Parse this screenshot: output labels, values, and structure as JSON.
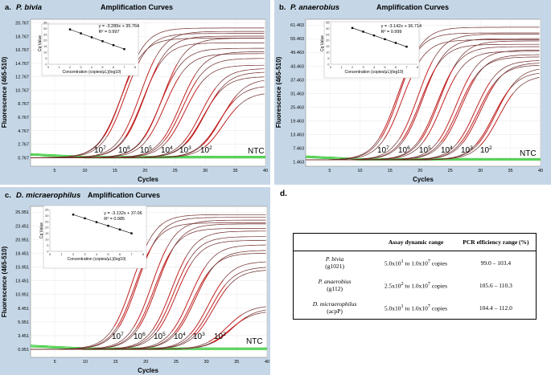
{
  "chart_data": [
    {
      "type": "line",
      "panel": "a.",
      "organism": "P. bivia",
      "title": "Amplification Curves",
      "xlabel": "Cycles",
      "ylabel": "Fluorescence (465-510)",
      "xticks": [
        5,
        10,
        15,
        20,
        25,
        30,
        35,
        40
      ],
      "yticks": [
        "0.767",
        "2.767",
        "4.767",
        "6.767",
        "8.767",
        "10.767",
        "12.767",
        "14.767",
        "16.767",
        "18.767",
        "20.767"
      ],
      "xlim": [
        1,
        40
      ],
      "ylim": [
        -0.5,
        21.3
      ],
      "curve_labels": [
        "7",
        "6",
        "5",
        "4",
        "3",
        "2"
      ],
      "ntc_label": "NTC",
      "curves": [
        {
          "label": "10^7",
          "ct": 16.0,
          "plateau": 18.5
        },
        {
          "label": "10^7",
          "ct": 16.3,
          "plateau": 20.0
        },
        {
          "label": "10^7",
          "ct": 16.7,
          "plateau": 19.2
        },
        {
          "label": "10^6",
          "ct": 19.2,
          "plateau": 19.5
        },
        {
          "label": "10^6",
          "ct": 19.6,
          "plateau": 17.8
        },
        {
          "label": "10^6",
          "ct": 19.9,
          "plateau": 18.8
        },
        {
          "label": "10^5",
          "ct": 22.6,
          "plateau": 17.0
        },
        {
          "label": "10^5",
          "ct": 22.9,
          "plateau": 18.5
        },
        {
          "label": "10^5",
          "ct": 23.3,
          "plateau": 16.2
        },
        {
          "label": "10^4",
          "ct": 25.9,
          "plateau": 16.5
        },
        {
          "label": "10^4",
          "ct": 26.2,
          "plateau": 15.5
        },
        {
          "label": "10^4",
          "ct": 26.6,
          "plateau": 14.5
        },
        {
          "label": "10^3",
          "ct": 29.3,
          "plateau": 14.0
        },
        {
          "label": "10^3",
          "ct": 29.6,
          "plateau": 12.8
        },
        {
          "label": "10^3",
          "ct": 29.9,
          "plateau": 13.5
        },
        {
          "label": "10^2",
          "ct": 32.3,
          "plateau": 11.5
        },
        {
          "label": "10^2",
          "ct": 32.7,
          "plateau": 12.5
        },
        {
          "label": "10^2",
          "ct": 33.0,
          "plateau": 10.5
        }
      ],
      "inset": {
        "equation": "y = -3.289x + 35.764",
        "r2": "R² = 0.997",
        "xlabel": "Concentration (copies/μL)(log10)",
        "ylabel": "Cq Value",
        "xticks": [
          "0",
          "1",
          "2",
          "3",
          "4",
          "5",
          "6",
          "7",
          "8"
        ],
        "yticks": [
          "0",
          "5",
          "10",
          "15",
          "20",
          "25",
          "30",
          "35"
        ],
        "points": [
          {
            "x": 2,
            "y": 29.2
          },
          {
            "x": 3,
            "y": 25.9
          },
          {
            "x": 4,
            "y": 22.6
          },
          {
            "x": 5,
            "y": 19.3
          },
          {
            "x": 6,
            "y": 16.0
          },
          {
            "x": 7,
            "y": 12.7
          }
        ]
      }
    },
    {
      "type": "line",
      "panel": "b.",
      "organism": "P. anaerobius",
      "title": "Amplification Curves",
      "xlabel": "Cycles",
      "ylabel": "Fluorescence (465-510)",
      "xticks": [
        5,
        10,
        15,
        20,
        25,
        30,
        35,
        40
      ],
      "yticks": [
        "1.463",
        "7.463",
        "13.463",
        "19.463",
        "25.463",
        "31.463",
        "37.463",
        "43.463",
        "49.463",
        "55.463",
        "61.463"
      ],
      "xlim": [
        1,
        40
      ],
      "ylim": [
        -0.5,
        64
      ],
      "curve_labels": [
        "7",
        "6",
        "5",
        "4",
        "3",
        "2"
      ],
      "ntc_label": "NTC",
      "curves": [
        {
          "label": "10^7",
          "ct": 16.2,
          "plateau": 58.0
        },
        {
          "label": "10^7",
          "ct": 16.6,
          "plateau": 60.5
        },
        {
          "label": "10^7",
          "ct": 17.0,
          "plateau": 55.0
        },
        {
          "label": "10^6",
          "ct": 19.6,
          "plateau": 57.5
        },
        {
          "label": "10^6",
          "ct": 20.0,
          "plateau": 53.0
        },
        {
          "label": "10^6",
          "ct": 20.4,
          "plateau": 55.5
        },
        {
          "label": "10^5",
          "ct": 22.8,
          "plateau": 52.0
        },
        {
          "label": "10^5",
          "ct": 23.2,
          "plateau": 54.5
        },
        {
          "label": "10^5",
          "ct": 23.6,
          "plateau": 50.0
        },
        {
          "label": "10^4",
          "ct": 26.0,
          "plateau": 50.5
        },
        {
          "label": "10^4",
          "ct": 26.4,
          "plateau": 47.5
        },
        {
          "label": "10^4",
          "ct": 26.8,
          "plateau": 48.5
        },
        {
          "label": "10^3",
          "ct": 29.2,
          "plateau": 46.0
        },
        {
          "label": "10^3",
          "ct": 29.6,
          "plateau": 44.0
        },
        {
          "label": "10^3",
          "ct": 30.0,
          "plateau": 45.0
        },
        {
          "label": "10^2",
          "ct": 32.2,
          "plateau": 41.0
        },
        {
          "label": "10^2",
          "ct": 32.6,
          "plateau": 43.0
        },
        {
          "label": "10^2",
          "ct": 33.0,
          "plateau": 39.5
        }
      ],
      "inset": {
        "equation": "y = -3.142x + 36.714",
        "r2": "R² = 0.999",
        "xlabel": "Concentration (copies/μL)(log10)",
        "ylabel": "Cq Value",
        "xticks": [
          "0",
          "1",
          "2",
          "3",
          "4",
          "5",
          "6",
          "7",
          "8"
        ],
        "yticks": [
          "0",
          "5",
          "10",
          "15",
          "20",
          "25",
          "30",
          "35"
        ],
        "points": [
          {
            "x": 2,
            "y": 30.4
          },
          {
            "x": 3,
            "y": 27.3
          },
          {
            "x": 4,
            "y": 24.1
          },
          {
            "x": 5,
            "y": 21.0
          },
          {
            "x": 6,
            "y": 17.9
          },
          {
            "x": 7,
            "y": 14.7
          }
        ]
      }
    },
    {
      "type": "line",
      "panel": "c.",
      "organism": "D. micraerophilus",
      "title": "Amplification Curves",
      "xlabel": "Cycles",
      "ylabel": "Fluorescence (465-510)",
      "xticks": [
        5,
        10,
        15,
        20,
        25,
        30,
        35,
        40
      ],
      "yticks": [
        "0.951",
        "3.451",
        "5.951",
        "8.451",
        "10.951",
        "13.451",
        "15.951",
        "18.451",
        "20.951",
        "23.451",
        "25.951"
      ],
      "xlim": [
        1,
        40
      ],
      "ylim": [
        -0.5,
        27
      ],
      "curve_labels": [
        "7",
        "6",
        "5",
        "4",
        "3",
        "2"
      ],
      "ntc_label": "NTC",
      "curves": [
        {
          "label": "10^7",
          "ct": 17.8,
          "plateau": 25.5
        },
        {
          "label": "10^7",
          "ct": 18.2,
          "plateau": 24.0
        },
        {
          "label": "10^7",
          "ct": 18.6,
          "plateau": 25.0
        },
        {
          "label": "10^6",
          "ct": 21.0,
          "plateau": 24.5
        },
        {
          "label": "10^6",
          "ct": 21.4,
          "plateau": 23.0
        },
        {
          "label": "10^6",
          "ct": 21.8,
          "plateau": 23.8
        },
        {
          "label": "10^5",
          "ct": 24.2,
          "plateau": 22.5
        },
        {
          "label": "10^5",
          "ct": 24.6,
          "plateau": 21.5
        },
        {
          "label": "10^5",
          "ct": 25.0,
          "plateau": 20.8
        },
        {
          "label": "10^4",
          "ct": 27.3,
          "plateau": 20.0
        },
        {
          "label": "10^4",
          "ct": 27.7,
          "plateau": 18.5
        },
        {
          "label": "10^4",
          "ct": 28.1,
          "plateau": 19.0
        },
        {
          "label": "10^3",
          "ct": 30.3,
          "plateau": 17.0
        },
        {
          "label": "10^3",
          "ct": 30.7,
          "plateau": 16.0
        },
        {
          "label": "10^3",
          "ct": 31.1,
          "plateau": 15.5
        },
        {
          "label": "10^2",
          "ct": 33.4,
          "plateau": 9.0
        },
        {
          "label": "10^2",
          "ct": 33.8,
          "plateau": 8.0
        },
        {
          "label": "10^2",
          "ct": 34.2,
          "plateau": 8.5
        }
      ],
      "inset": {
        "equation": "y = -3.132x + 37.06",
        "r2": "R² = 0.985",
        "xlabel": "Concentration (copies/μL)(log10)",
        "ylabel": "Cq Value",
        "xticks": [
          "0",
          "1",
          "2",
          "3",
          "4",
          "5",
          "6",
          "7",
          "8"
        ],
        "yticks": [
          "0",
          "5",
          "10",
          "15",
          "20",
          "25",
          "30",
          "35"
        ],
        "points": [
          {
            "x": 2,
            "y": 30.8
          },
          {
            "x": 3,
            "y": 27.7
          },
          {
            "x": 4,
            "y": 24.5
          },
          {
            "x": 5,
            "y": 21.4
          },
          {
            "x": 6,
            "y": 18.3
          },
          {
            "x": 7,
            "y": 15.1
          }
        ]
      }
    }
  ],
  "colors": {
    "panel_bg": "#c5d7e7",
    "curve_dark": "#6e2a2a",
    "curve_red": "#c62020",
    "ntc_green": "#22c422"
  },
  "table": {
    "panel_letter": "d.",
    "headers": [
      "",
      "Assay dynamic range",
      "PCR efficiency range (%)"
    ],
    "rows": [
      {
        "organism": "P. bivia",
        "gene": "(g1021)",
        "range_base": "5.0x10",
        "range_exp": "1",
        "range_mid": " to 1.0x10",
        "range_exp2": "7",
        "range_tail": " copies",
        "efficiency": "99.0 – 103.4"
      },
      {
        "organism": "P. anaerobius",
        "gene": "(g112)",
        "range_base": "2.5x10",
        "range_exp": "2",
        "range_mid": " to 1.0x10",
        "range_exp2": "7",
        "range_tail": " copies",
        "efficiency": "105.6 – 110.3"
      },
      {
        "organism": "D. micraerophilus",
        "gene": "(acpP)",
        "range_base": "5.0x10",
        "range_exp": "1",
        "range_mid": " to 1.0x10",
        "range_exp2": "7",
        "range_tail": " copies",
        "efficiency": "104.4 – 112.0"
      }
    ]
  }
}
